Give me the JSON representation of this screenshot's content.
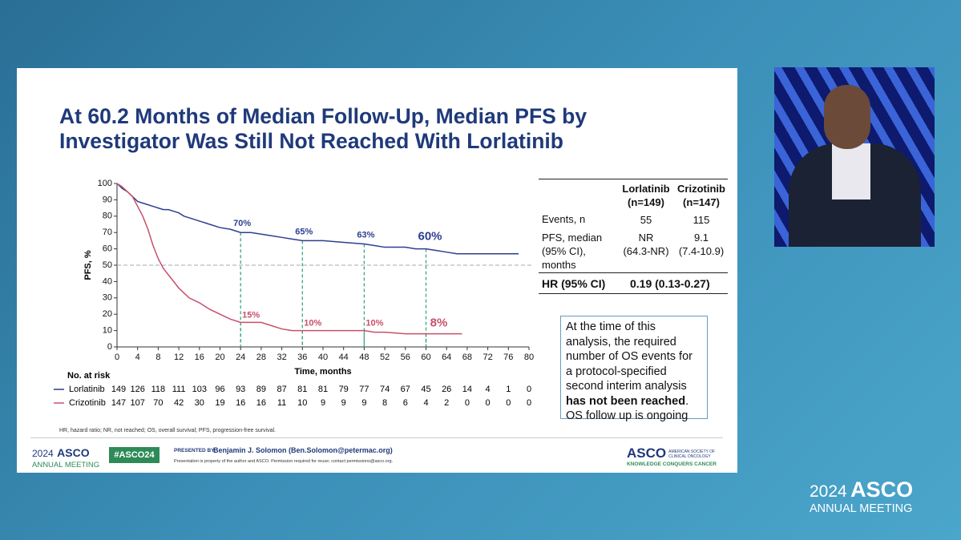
{
  "title_lines": [
    "At 60.2 Months of Median Follow-Up, Median PFS by",
    "Investigator Was Still Not Reached With Lorlatinib"
  ],
  "chart_data": {
    "type": "line",
    "ylabel": "PFS, %",
    "xlabel": "Time, months",
    "x": [
      0,
      1,
      2,
      3,
      4,
      5,
      6,
      7,
      8,
      9,
      10,
      11,
      12,
      13,
      14,
      16,
      18,
      20,
      22,
      24,
      26,
      28,
      30,
      32,
      34,
      36,
      40,
      44,
      48,
      50,
      52,
      56,
      58,
      60,
      62,
      64,
      66,
      67,
      70,
      74,
      78
    ],
    "series": [
      {
        "name": "Lorlatinib",
        "color": "#2e3f8f",
        "values": [
          100,
          97,
          95,
          92,
          89,
          88,
          87,
          86,
          85,
          84,
          84,
          83,
          82,
          80,
          79,
          77,
          75,
          73,
          72,
          70,
          70,
          69,
          68,
          67,
          66,
          65,
          65,
          64,
          63,
          62,
          61,
          61,
          60,
          60,
          59,
          58,
          57,
          57,
          57,
          57,
          57
        ]
      },
      {
        "name": "Crizotinib",
        "color": "#c8506a",
        "values": [
          100,
          98,
          95,
          92,
          86,
          80,
          72,
          62,
          54,
          48,
          44,
          40,
          36,
          33,
          30,
          27,
          23,
          20,
          17,
          15,
          15,
          15,
          13,
          11,
          10,
          10,
          10,
          10,
          10,
          9,
          9,
          8,
          8,
          8,
          8,
          8,
          8,
          8,
          null,
          null,
          null
        ]
      }
    ],
    "xlim": [
      0,
      80
    ],
    "xticks": [
      0,
      4,
      8,
      12,
      16,
      20,
      24,
      28,
      32,
      36,
      40,
      44,
      48,
      52,
      56,
      60,
      64,
      68,
      72,
      76,
      80
    ],
    "ylim": [
      0,
      100
    ],
    "yticks": [
      0,
      10,
      20,
      30,
      40,
      50,
      60,
      70,
      80,
      90,
      100
    ],
    "reference_line": 50,
    "landmark_color": "#3aa57a",
    "landmarks": {
      "x": [
        24,
        36,
        48,
        60
      ],
      "series": [
        {
          "values": [
            70,
            65,
            63,
            60
          ],
          "value_labels": [
            "70%",
            "65%",
            "63%",
            "60%"
          ]
        },
        {
          "values": [
            15,
            10,
            10,
            8
          ],
          "value_labels": [
            "15%",
            "10%",
            "10%",
            "8%"
          ]
        }
      ]
    },
    "risk_table": {
      "title": "No. at risk",
      "rows": [
        {
          "name": "Lorlatinib",
          "counts": [
            "149",
            "126",
            "118",
            "111",
            "103",
            "96",
            "93",
            "89",
            "87",
            "81",
            "81",
            "79",
            "77",
            "74",
            "67",
            "45",
            "26",
            "14",
            "4",
            "1",
            "0"
          ]
        },
        {
          "name": "Crizotinib",
          "counts": [
            "147",
            "107",
            "70",
            "42",
            "30",
            "19",
            "16",
            "16",
            "11",
            "10",
            "9",
            "9",
            "9",
            "8",
            "6",
            "4",
            "2",
            "0",
            "0",
            "0",
            "0"
          ]
        }
      ]
    }
  },
  "table": {
    "columns": [
      [
        "Lorlatinib",
        "(n=149)"
      ],
      [
        "Crizotinib",
        "(n=147)"
      ]
    ],
    "events": {
      "label": "Events, n",
      "cells": [
        "55",
        "115"
      ]
    },
    "pfs": {
      "label": [
        "PFS, median",
        "(95% CI),",
        "months"
      ],
      "cells": [
        [
          "NR",
          "(64.3-NR)"
        ],
        [
          "9.1",
          "(7.4-10.9)"
        ]
      ]
    },
    "hr": {
      "label": "HR (95% CI)",
      "value": "0.19 (0.13-0.27)"
    }
  },
  "note": {
    "text_start": "At the time of this analysis, the required number of OS events for a protocol-specified second interim analysis",
    "bold": "has not been reached",
    "text_end": ". OS follow up is ongoing"
  },
  "footnote": "HR, hazard ratio; NR, not reached; OS, overall survival; PFS, progression-free survival.",
  "footer": {
    "year": "2024",
    "brand": "ASCO",
    "meeting": "ANNUAL MEETING",
    "hashtag": "#ASCO24",
    "presented_by": "PRESENTED BY:",
    "presenter": "Benjamin J. Solomon (Ben.Solomon@petermac.org)",
    "disclaimer": "Presentation is property of the author and ASCO. Permission required for reuse; contact permissions@asco.org.",
    "society": "AMERICAN SOCIETY OF CLINICAL ONCOLOGY",
    "tagline": "KNOWLEDGE CONQUERS CANCER"
  },
  "overlay": {
    "year": "2024",
    "brand": "ASCO",
    "meeting": "ANNUAL MEETING"
  }
}
